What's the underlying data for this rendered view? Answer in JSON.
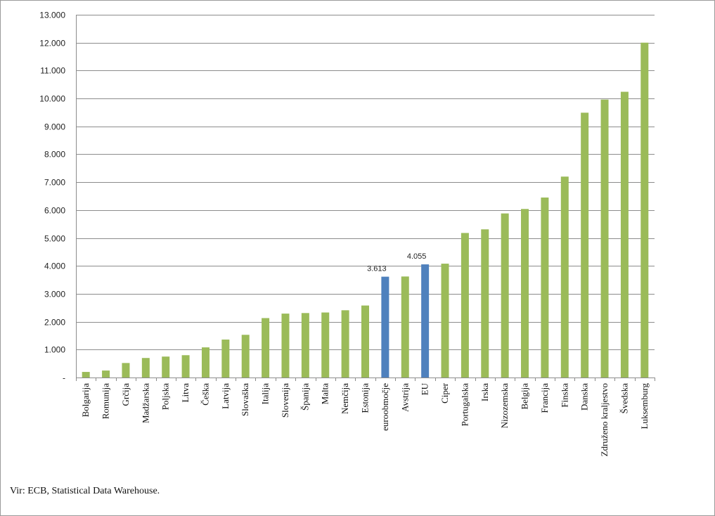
{
  "chart_data": {
    "type": "bar",
    "categories": [
      "Bolgarija",
      "Romunija",
      "Grčija",
      "Madžarska",
      "Poljska",
      "Litva",
      "Češka",
      "Latvija",
      "Slovaška",
      "Italija",
      "Slovenija",
      "Španija",
      "Malta",
      "Nemčija",
      "Estonija",
      "euroobmočje",
      "Avstrija",
      "EU",
      "Ciper",
      "Portugalska",
      "Irska",
      "Nizozemska",
      "Belgija",
      "Francija",
      "Finska",
      "Danska",
      "Združeno kraljestvo",
      "Švedska",
      "Luksemburg"
    ],
    "values": [
      200,
      250,
      520,
      700,
      750,
      800,
      1080,
      1360,
      1530,
      2130,
      2290,
      2310,
      2330,
      2410,
      2580,
      3613,
      3620,
      4055,
      4080,
      5180,
      5310,
      5880,
      6040,
      6450,
      7200,
      9490,
      9960,
      10240,
      12000
    ],
    "highlighted": [
      "euroobmočje",
      "EU"
    ],
    "data_labels": {
      "euroobmočje": "3.613",
      "EU": "4.055"
    },
    "colors": {
      "default": "#9bbb59",
      "highlight": "#4f81bd"
    },
    "ylim": [
      0,
      13000
    ],
    "yticks": [
      0,
      1000,
      2000,
      3000,
      4000,
      5000,
      6000,
      7000,
      8000,
      9000,
      10000,
      11000,
      12000,
      13000
    ],
    "ytick_labels": [
      "-",
      "1.000",
      "2.000",
      "3.000",
      "4.000",
      "5.000",
      "6.000",
      "7.000",
      "8.000",
      "9.000",
      "10.000",
      "11.000",
      "12.000",
      "13.000"
    ],
    "grid": true,
    "legend": "none"
  },
  "source_note": "Vir: ECB, Statistical Data Warehouse."
}
